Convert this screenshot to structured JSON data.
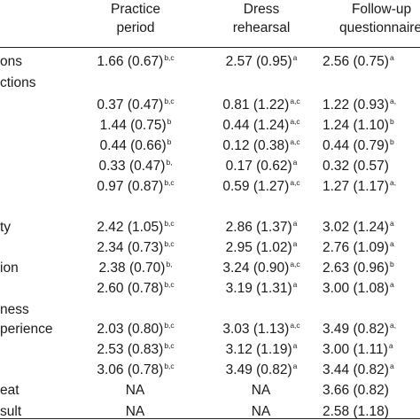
{
  "columns": [
    {
      "line1": "Practice",
      "line2": "period"
    },
    {
      "line1": "Dress",
      "line2": "rehearsal"
    },
    {
      "line1": "Follow-up",
      "line2": "questionnaire"
    }
  ],
  "rows": [
    {
      "label": "ons",
      "cells": [
        {
          "v": "1.66 (0.67)",
          "s": "b,c"
        },
        {
          "v": "2.57 (0.95)",
          "s": "a"
        },
        {
          "v": "2.56 (0.75)",
          "s": "a"
        }
      ]
    },
    {
      "label": "ctions",
      "cells": [
        {
          "v": "",
          "s": ""
        },
        {
          "v": "",
          "s": ""
        },
        {
          "v": "",
          "s": ""
        }
      ]
    },
    {
      "label": "",
      "cells": [
        {
          "v": "0.37 (0.47)",
          "s": "b,c"
        },
        {
          "v": "0.81 (1.22)",
          "s": "a,c"
        },
        {
          "v": "1.22 (0.93)",
          "s": "a,"
        }
      ]
    },
    {
      "label": "",
      "cells": [
        {
          "v": "1.44 (0.75)",
          "s": "b"
        },
        {
          "v": "0.44 (1.24)",
          "s": "a,c"
        },
        {
          "v": "1.24 (1.10)",
          "s": "b"
        }
      ]
    },
    {
      "label": "",
      "cells": [
        {
          "v": "0.44 (0.66)",
          "s": "b"
        },
        {
          "v": "0.12 (0.38)",
          "s": "a,c"
        },
        {
          "v": "0.44 (0.79)",
          "s": "b"
        }
      ]
    },
    {
      "label": "",
      "cells": [
        {
          "v": "0.33 (0.47)",
          "s": "b,"
        },
        {
          "v": "0.17 (0.62)",
          "s": "a"
        },
        {
          "v": "0.32 (0.57)",
          "s": ""
        }
      ]
    },
    {
      "label": "",
      "cells": [
        {
          "v": "0.97 (0.87)",
          "s": "b,c"
        },
        {
          "v": "0.59 (1.27)",
          "s": "a,c"
        },
        {
          "v": "1.27 (1.17)",
          "s": "a,"
        }
      ]
    },
    {
      "label": "ty",
      "cells": [
        {
          "v": "2.42 (1.05)",
          "s": "b,c"
        },
        {
          "v": "2.86 (1.37)",
          "s": "a"
        },
        {
          "v": "3.02 (1.24)",
          "s": "a"
        }
      ]
    },
    {
      "label": "",
      "cells": [
        {
          "v": "2.34 (0.73)",
          "s": "b,c"
        },
        {
          "v": "2.95 (1.02)",
          "s": "a"
        },
        {
          "v": "2.76 (1.09)",
          "s": "a"
        }
      ]
    },
    {
      "label": "ion",
      "cells": [
        {
          "v": "2.38 (0.70)",
          "s": "b,"
        },
        {
          "v": "3.24 (0.90)",
          "s": "a,c"
        },
        {
          "v": "2.63 (0.96)",
          "s": "b"
        }
      ]
    },
    {
      "label": "",
      "cells": [
        {
          "v": "2.60 (0.78)",
          "s": "b,c"
        },
        {
          "v": "3.19 (1.31)",
          "s": "a"
        },
        {
          "v": "3.00 (1.08)",
          "s": "a"
        }
      ]
    },
    {
      "label": "ness",
      "cells": [
        {
          "v": "",
          "s": ""
        },
        {
          "v": "",
          "s": ""
        },
        {
          "v": "",
          "s": ""
        }
      ]
    },
    {
      "label": "perience",
      "cells": [
        {
          "v": "2.03 (0.80)",
          "s": "b,c"
        },
        {
          "v": "3.03 (1.13)",
          "s": "a,c"
        },
        {
          "v": "3.49 (0.82)",
          "s": "a,"
        }
      ]
    },
    {
      "label": "",
      "cells": [
        {
          "v": "2.53 (0.83)",
          "s": "b,c"
        },
        {
          "v": "3.12 (1.19)",
          "s": "a"
        },
        {
          "v": "3.00 (1.11)",
          "s": "a"
        }
      ]
    },
    {
      "label": "",
      "cells": [
        {
          "v": "3.06 (0.78)",
          "s": "b,c"
        },
        {
          "v": "3.49 (0.82)",
          "s": "a"
        },
        {
          "v": "3.44 (0.82)",
          "s": "a"
        }
      ]
    },
    {
      "label": "eat",
      "cells": [
        {
          "v": "NA",
          "s": ""
        },
        {
          "v": "NA",
          "s": ""
        },
        {
          "v": "3.66 (0.82)",
          "s": ""
        }
      ]
    },
    {
      "label": "sult",
      "cells": [
        {
          "v": "NA",
          "s": ""
        },
        {
          "v": "NA",
          "s": ""
        },
        {
          "v": "2.58 (1.18)",
          "s": ""
        }
      ]
    }
  ]
}
